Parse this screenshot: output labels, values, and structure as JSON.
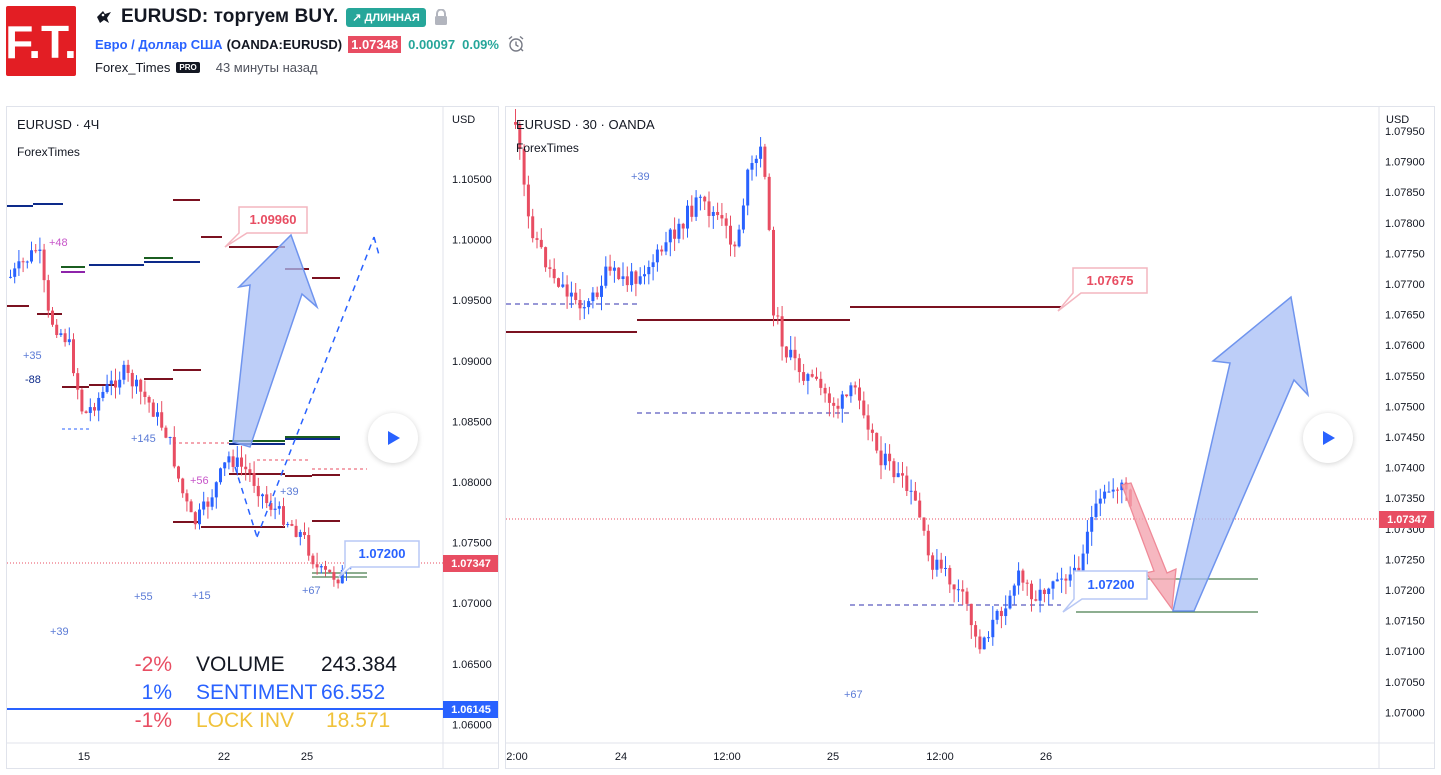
{
  "header": {
    "logo_text": "F.T.",
    "title": "EURUSD: торгуем BUY.",
    "direction_badge": "↗ ДЛИННАЯ",
    "symbol_name": "Евро / Доллар США",
    "symbol_ticker": "(OANDA:EURUSD)",
    "price": "1.07348",
    "change": "0.00097",
    "change_pct": "0.09%",
    "author": "Forex_Times",
    "author_badge": "PRO",
    "published": "43 минуты назад"
  },
  "colors": {
    "brand_red": "#e31e24",
    "up": "#2962ff",
    "down": "#e84d62",
    "long_badge": "#26a69a",
    "level_dark_red": "#7b1120",
    "level_navy": "#0d2a8a"
  },
  "icons": [
    "bird-icon",
    "lock-icon",
    "alarm-clock-icon",
    "play-icon",
    "up-arrow-icon",
    "down-arrow-icon"
  ],
  "left_chart": {
    "title": "EURUSD · 4Ч",
    "source": "ForexTimes",
    "currency": "USD",
    "price_ticks": [
      "1.10500",
      "1.10000",
      "1.09500",
      "1.09000",
      "1.08500",
      "1.08000",
      "1.07500",
      "1.07000",
      "1.06500",
      "1.06000"
    ],
    "date_ticks": [
      "15",
      "22",
      "25"
    ],
    "last_price": "1.07347",
    "line_price": "1.06145",
    "callout_top": "1.09960",
    "callout_bottom": "1.07200",
    "notes": [
      "+48",
      "+35",
      "-88",
      "+145",
      "+15",
      "+56",
      "+39",
      "+67",
      "+55",
      "+39"
    ],
    "stats": [
      {
        "pct": "-2%",
        "label": "VOLUME",
        "value": "243.384"
      },
      {
        "pct": "1%",
        "label": "SENTIMENT",
        "value": "66.552"
      },
      {
        "pct": "-1%",
        "label": "LOCK INV",
        "value": "18.571"
      }
    ]
  },
  "right_chart": {
    "title": "EURUSD · 30 · OANDA",
    "source": "ForexTimes",
    "currency": "USD",
    "price_ticks": [
      "1.07950",
      "1.07900",
      "1.07850",
      "1.07800",
      "1.07750",
      "1.07700",
      "1.07650",
      "1.07600",
      "1.07550",
      "1.07500",
      "1.07450",
      "1.07400",
      "1.07350",
      "1.07300",
      "1.07250",
      "1.07200",
      "1.07150",
      "1.07100",
      "1.07050",
      "1.07000"
    ],
    "time_ticks": [
      "2:00",
      "24",
      "12:00",
      "25",
      "12:00",
      "26"
    ],
    "last_price": "1.07347",
    "callout_top": "1.07675",
    "callout_bottom": "1.07200",
    "notes": [
      "+39",
      "+67"
    ]
  }
}
